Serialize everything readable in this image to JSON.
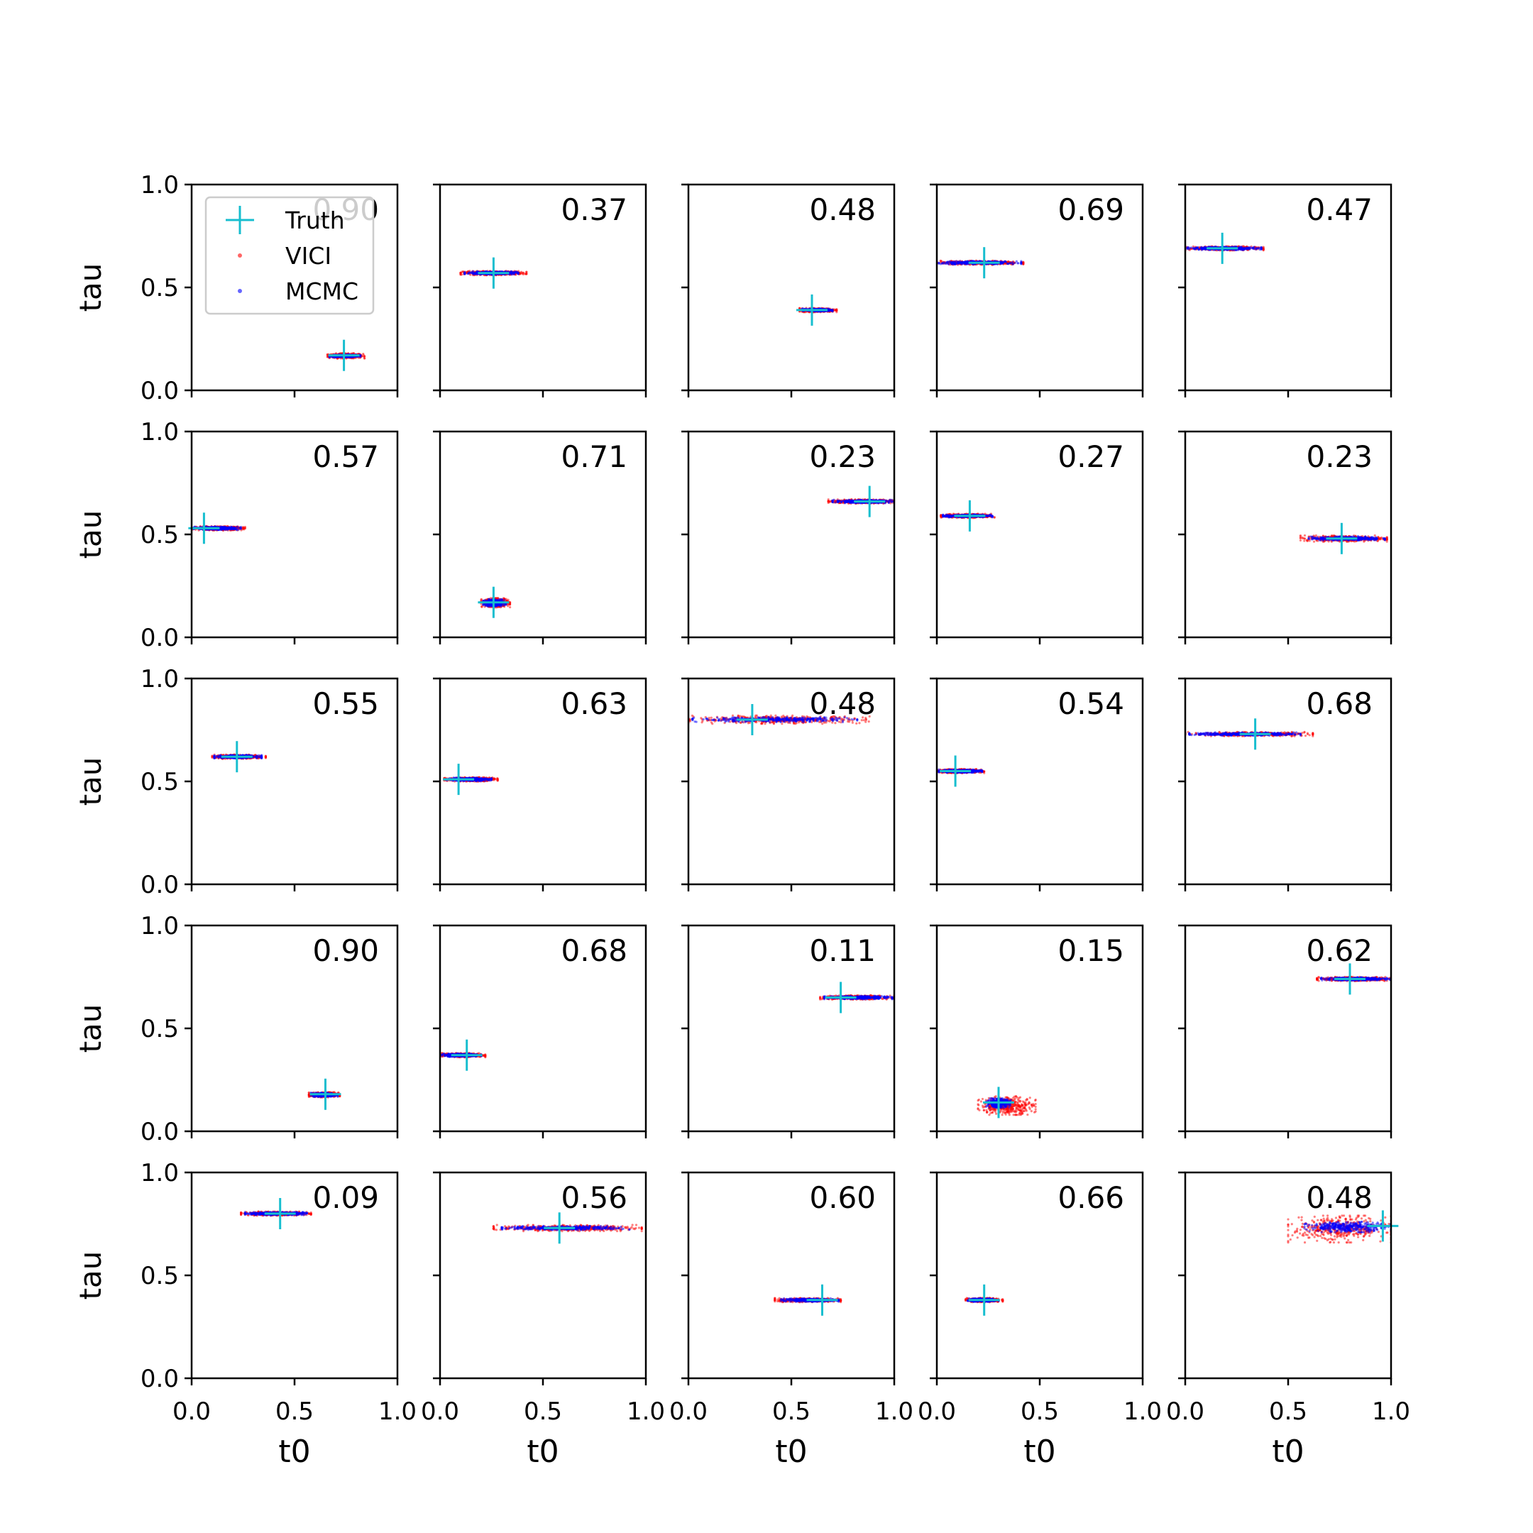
{
  "chart_data": {
    "type": "scatter",
    "layout": {
      "rows": 5,
      "cols": 5
    },
    "xlabel": "t0",
    "ylabel": "tau",
    "xlim": [
      0,
      1
    ],
    "ylim": [
      0,
      1
    ],
    "x_ticks": [
      "0.0",
      "0.5",
      "1.0"
    ],
    "y_ticks": [
      "0.0",
      "0.5",
      "1.0"
    ],
    "grid": false,
    "legend": {
      "placement": "upper-left (first panel)",
      "entries": [
        {
          "label": "Truth",
          "marker": "plus",
          "color": "#17becf"
        },
        {
          "label": "VICI",
          "marker": "dot",
          "color": "#ff0000"
        },
        {
          "label": "MCMC",
          "marker": "dot",
          "color": "#0000ff"
        }
      ]
    },
    "panels": [
      {
        "label": "0.90",
        "truth": [
          0.74,
          0.17
        ],
        "vici": {
          "x": [
            0.66,
            0.84
          ],
          "y": [
            0.155,
            0.18
          ]
        },
        "mcmc": {
          "x": [
            0.67,
            0.82
          ],
          "y": [
            0.16,
            0.175
          ]
        }
      },
      {
        "label": "0.37",
        "truth": [
          0.26,
          0.57
        ],
        "vici": {
          "x": [
            0.1,
            0.42
          ],
          "y": [
            0.56,
            0.58
          ]
        },
        "mcmc": {
          "x": [
            0.12,
            0.38
          ],
          "y": [
            0.562,
            0.578
          ]
        }
      },
      {
        "label": "0.48",
        "truth": [
          0.6,
          0.39
        ],
        "vici": {
          "x": [
            0.54,
            0.72
          ],
          "y": [
            0.38,
            0.4
          ]
        },
        "mcmc": {
          "x": [
            0.55,
            0.7
          ],
          "y": [
            0.383,
            0.397
          ]
        }
      },
      {
        "label": "0.69",
        "truth": [
          0.23,
          0.62
        ],
        "vici": {
          "x": [
            0.0,
            0.42
          ],
          "y": [
            0.61,
            0.63
          ]
        },
        "mcmc": {
          "x": [
            0.01,
            0.41
          ],
          "y": [
            0.612,
            0.628
          ]
        }
      },
      {
        "label": "0.47",
        "truth": [
          0.18,
          0.69
        ],
        "vici": {
          "x": [
            0.0,
            0.38
          ],
          "y": [
            0.68,
            0.7
          ]
        },
        "mcmc": {
          "x": [
            0.01,
            0.37
          ],
          "y": [
            0.682,
            0.698
          ]
        }
      },
      {
        "label": "0.57",
        "truth": [
          0.06,
          0.53
        ],
        "vici": {
          "x": [
            0.0,
            0.26
          ],
          "y": [
            0.52,
            0.54
          ]
        },
        "mcmc": {
          "x": [
            0.01,
            0.24
          ],
          "y": [
            0.522,
            0.538
          ]
        }
      },
      {
        "label": "0.71",
        "truth": [
          0.26,
          0.17
        ],
        "vici": {
          "x": [
            0.2,
            0.34
          ],
          "y": [
            0.145,
            0.19
          ]
        },
        "mcmc": {
          "x": [
            0.21,
            0.32
          ],
          "y": [
            0.15,
            0.185
          ]
        }
      },
      {
        "label": "0.23",
        "truth": [
          0.88,
          0.66
        ],
        "vici": {
          "x": [
            0.68,
            1.0
          ],
          "y": [
            0.65,
            0.67
          ]
        },
        "mcmc": {
          "x": [
            0.7,
            1.0
          ],
          "y": [
            0.652,
            0.668
          ]
        }
      },
      {
        "label": "0.27",
        "truth": [
          0.16,
          0.59
        ],
        "vici": {
          "x": [
            0.02,
            0.28
          ],
          "y": [
            0.58,
            0.6
          ]
        },
        "mcmc": {
          "x": [
            0.03,
            0.27
          ],
          "y": [
            0.583,
            0.597
          ]
        }
      },
      {
        "label": "0.23",
        "truth": [
          0.76,
          0.48
        ],
        "vici": {
          "x": [
            0.56,
            0.98
          ],
          "y": [
            0.465,
            0.495
          ]
        },
        "mcmc": {
          "x": [
            0.6,
            0.97
          ],
          "y": [
            0.47,
            0.49
          ]
        }
      },
      {
        "label": "0.55",
        "truth": [
          0.22,
          0.62
        ],
        "vici": {
          "x": [
            0.1,
            0.36
          ],
          "y": [
            0.61,
            0.63
          ]
        },
        "mcmc": {
          "x": [
            0.11,
            0.34
          ],
          "y": [
            0.612,
            0.628
          ]
        }
      },
      {
        "label": "0.63",
        "truth": [
          0.09,
          0.51
        ],
        "vici": {
          "x": [
            0.02,
            0.28
          ],
          "y": [
            0.5,
            0.52
          ]
        },
        "mcmc": {
          "x": [
            0.03,
            0.25
          ],
          "y": [
            0.502,
            0.518
          ]
        }
      },
      {
        "label": "0.48",
        "truth": [
          0.31,
          0.8
        ],
        "vici": {
          "x": [
            0.0,
            0.88
          ],
          "y": [
            0.78,
            0.82
          ]
        },
        "mcmc": {
          "x": [
            0.02,
            0.82
          ],
          "y": [
            0.788,
            0.812
          ]
        }
      },
      {
        "label": "0.54",
        "truth": [
          0.09,
          0.55
        ],
        "vici": {
          "x": [
            0.0,
            0.23
          ],
          "y": [
            0.54,
            0.56
          ]
        },
        "mcmc": {
          "x": [
            0.01,
            0.22
          ],
          "y": [
            0.542,
            0.558
          ]
        }
      },
      {
        "label": "0.68",
        "truth": [
          0.34,
          0.73
        ],
        "vici": {
          "x": [
            0.0,
            0.62
          ],
          "y": [
            0.72,
            0.74
          ]
        },
        "mcmc": {
          "x": [
            0.02,
            0.56
          ],
          "y": [
            0.722,
            0.738
          ]
        }
      },
      {
        "label": "0.90",
        "truth": [
          0.65,
          0.18
        ],
        "vici": {
          "x": [
            0.57,
            0.72
          ],
          "y": [
            0.165,
            0.19
          ]
        },
        "mcmc": {
          "x": [
            0.58,
            0.71
          ],
          "y": [
            0.168,
            0.188
          ]
        }
      },
      {
        "label": "0.68",
        "truth": [
          0.13,
          0.37
        ],
        "vici": {
          "x": [
            0.0,
            0.22
          ],
          "y": [
            0.36,
            0.38
          ]
        },
        "mcmc": {
          "x": [
            0.01,
            0.2
          ],
          "y": [
            0.362,
            0.378
          ]
        }
      },
      {
        "label": "0.11",
        "truth": [
          0.74,
          0.65
        ],
        "vici": {
          "x": [
            0.64,
            1.0
          ],
          "y": [
            0.64,
            0.66
          ]
        },
        "mcmc": {
          "x": [
            0.66,
            0.99
          ],
          "y": [
            0.642,
            0.658
          ]
        }
      },
      {
        "label": "0.15",
        "truth": [
          0.3,
          0.14
        ],
        "vici": {
          "x": [
            0.2,
            0.48
          ],
          "y": [
            0.08,
            0.17
          ]
        },
        "mcmc": {
          "x": [
            0.24,
            0.36
          ],
          "y": [
            0.115,
            0.16
          ]
        }
      },
      {
        "label": "0.62",
        "truth": [
          0.8,
          0.74
        ],
        "vici": {
          "x": [
            0.64,
            1.0
          ],
          "y": [
            0.73,
            0.75
          ]
        },
        "mcmc": {
          "x": [
            0.66,
            1.0
          ],
          "y": [
            0.732,
            0.748
          ]
        }
      },
      {
        "label": "0.09",
        "truth": [
          0.43,
          0.8
        ],
        "vici": {
          "x": [
            0.24,
            0.58
          ],
          "y": [
            0.79,
            0.81
          ]
        },
        "mcmc": {
          "x": [
            0.26,
            0.56
          ],
          "y": [
            0.792,
            0.808
          ]
        }
      },
      {
        "label": "0.56",
        "truth": [
          0.58,
          0.73
        ],
        "vici": {
          "x": [
            0.26,
            0.98
          ],
          "y": [
            0.715,
            0.745
          ]
        },
        "mcmc": {
          "x": [
            0.3,
            0.92
          ],
          "y": [
            0.72,
            0.74
          ]
        }
      },
      {
        "label": "0.60",
        "truth": [
          0.65,
          0.38
        ],
        "vici": {
          "x": [
            0.42,
            0.74
          ],
          "y": [
            0.37,
            0.39
          ]
        },
        "mcmc": {
          "x": [
            0.45,
            0.73
          ],
          "y": [
            0.372,
            0.388
          ]
        }
      },
      {
        "label": "0.66",
        "truth": [
          0.23,
          0.38
        ],
        "vici": {
          "x": [
            0.14,
            0.32
          ],
          "y": [
            0.37,
            0.39
          ]
        },
        "mcmc": {
          "x": [
            0.15,
            0.3
          ],
          "y": [
            0.372,
            0.388
          ]
        }
      },
      {
        "label": "0.48",
        "truth": [
          0.96,
          0.74
        ],
        "vici": {
          "x": [
            0.5,
            1.0
          ],
          "y": [
            0.66,
            0.79
          ]
        },
        "mcmc": {
          "x": [
            0.58,
            1.0
          ],
          "y": [
            0.71,
            0.76
          ]
        }
      }
    ]
  }
}
